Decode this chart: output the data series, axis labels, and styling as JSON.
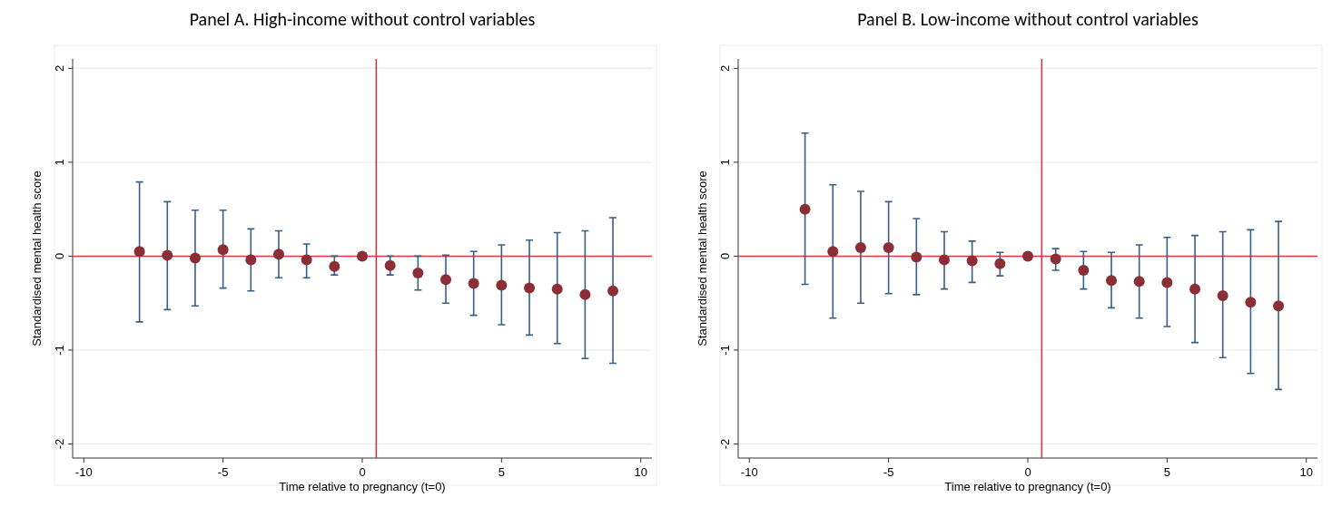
{
  "chart_data": [
    {
      "type": "scatter",
      "title": "Panel A. High-income without control variables",
      "xlabel": "Time relative to pregnancy (t=0)",
      "ylabel": "Standardised mental health score",
      "x": [
        -8,
        -7,
        -6,
        -5,
        -4,
        -3,
        -2,
        -1,
        0,
        1,
        2,
        3,
        4,
        5,
        6,
        7,
        8,
        9
      ],
      "series": [
        {
          "color": "#8b2e35",
          "values": [
            0.05,
            0.01,
            -0.02,
            0.07,
            -0.04,
            0.02,
            -0.04,
            -0.11,
            0,
            -0.1,
            -0.18,
            -0.25,
            -0.29,
            -0.31,
            -0.34,
            -0.35,
            -0.41,
            -0.37
          ],
          "errors": [
            [
              -0.7,
              0.79
            ],
            [
              -0.57,
              0.58
            ],
            [
              -0.53,
              0.49
            ],
            [
              -0.34,
              0.49
            ],
            [
              -0.37,
              0.29
            ],
            [
              -0.23,
              0.27
            ],
            [
              -0.23,
              0.13
            ],
            [
              -0.2,
              0.0
            ],
            null,
            [
              -0.2,
              0.0
            ],
            [
              -0.36,
              0.0
            ],
            [
              -0.5,
              0.01
            ],
            [
              -0.63,
              0.05
            ],
            [
              -0.73,
              0.12
            ],
            [
              -0.84,
              0.17
            ],
            [
              -0.93,
              0.25
            ],
            [
              -1.09,
              0.27
            ],
            [
              -1.14,
              0.41
            ]
          ]
        }
      ],
      "xlim": [
        -10.4,
        10.4
      ],
      "ylim": [
        -2.15,
        2.1
      ],
      "xticks": [
        -10,
        -5,
        0,
        5,
        10
      ],
      "yticks": [
        -2,
        -1,
        0,
        1,
        2
      ],
      "grid": "y",
      "marker": "circle",
      "ref_lines": [
        {
          "axis": "y",
          "value": 0,
          "color": "#e8383d"
        },
        {
          "axis": "x",
          "value": 0.5,
          "color": "#d0343a"
        }
      ]
    },
    {
      "type": "scatter",
      "title": "Panel B. Low-income without control variables",
      "xlabel": "Time relative to pregnancy (t=0)",
      "ylabel": "Standardised mental health score",
      "x": [
        -8,
        -7,
        -6,
        -5,
        -4,
        -3,
        -2,
        -1,
        0,
        1,
        2,
        3,
        4,
        5,
        6,
        7,
        8,
        9
      ],
      "series": [
        {
          "color": "#8b2e35",
          "values": [
            0.5,
            0.05,
            0.09,
            0.09,
            -0.01,
            -0.04,
            -0.05,
            -0.08,
            0,
            -0.03,
            -0.15,
            -0.26,
            -0.27,
            -0.28,
            -0.35,
            -0.42,
            -0.49,
            -0.53
          ],
          "errors": [
            [
              -0.3,
              1.31
            ],
            [
              -0.66,
              0.76
            ],
            [
              -0.5,
              0.69
            ],
            [
              -0.4,
              0.58
            ],
            [
              -0.41,
              0.4
            ],
            [
              -0.35,
              0.26
            ],
            [
              -0.28,
              0.16
            ],
            [
              -0.21,
              0.04
            ],
            null,
            [
              -0.15,
              0.08
            ],
            [
              -0.35,
              0.05
            ],
            [
              -0.55,
              0.04
            ],
            [
              -0.66,
              0.12
            ],
            [
              -0.75,
              0.2
            ],
            [
              -0.92,
              0.22
            ],
            [
              -1.08,
              0.26
            ],
            [
              -1.25,
              0.28
            ],
            [
              -1.42,
              0.37
            ]
          ]
        }
      ],
      "xlim": [
        -10.4,
        10.4
      ],
      "ylim": [
        -2.15,
        2.1
      ],
      "xticks": [
        -10,
        -5,
        0,
        5,
        10
      ],
      "yticks": [
        -2,
        -1,
        0,
        1,
        2
      ],
      "grid": "y",
      "marker": "circle",
      "ref_lines": [
        {
          "axis": "y",
          "value": 0,
          "color": "#e8383d"
        },
        {
          "axis": "x",
          "value": 0.5,
          "color": "#d0343a"
        }
      ]
    }
  ]
}
